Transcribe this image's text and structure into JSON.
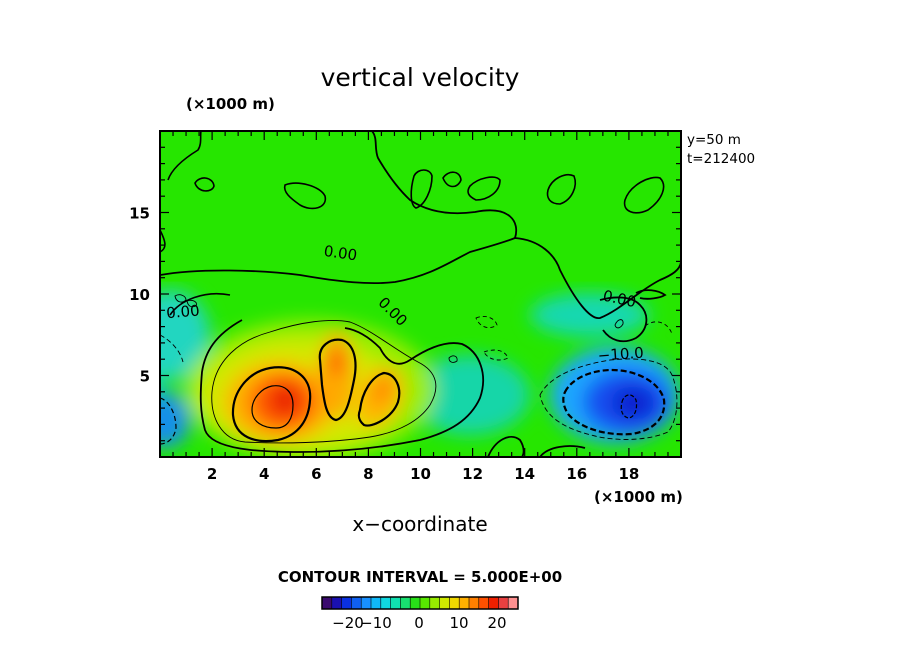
{
  "chart_data": {
    "type": "heatmap",
    "title": "vertical velocity",
    "xlabel": "x−coordinate",
    "x_unit_label": "(×1000 m)",
    "y_unit_label": "(×1000 m)",
    "info_lines": [
      "y=50  m",
      "t=212400"
    ],
    "contour_interval_label": "CONTOUR INTERVAL = 5.000E+00",
    "xlim": [
      0,
      20
    ],
    "ylim": [
      0,
      20
    ],
    "x_ticks": [
      2,
      4,
      6,
      8,
      10,
      12,
      14,
      16,
      18
    ],
    "x_tick_labels": [
      "2",
      "4",
      "6",
      "8",
      "10",
      "12",
      "14",
      "16",
      "18"
    ],
    "y_ticks": [
      5,
      10,
      15
    ],
    "y_tick_labels": [
      "5",
      "10",
      "15"
    ],
    "contour_labels": [
      {
        "text": "0.00",
        "x": 6.9,
        "y": 12.2
      },
      {
        "text": "0.00",
        "x": 0.9,
        "y": 8.6
      },
      {
        "text": "0.00",
        "x": 8.8,
        "y": 8.7
      },
      {
        "text": "0.00",
        "x": 17.6,
        "y": 9.4
      },
      {
        "text": "−10.0",
        "x": 17.7,
        "y": 6.0
      }
    ],
    "features": [
      {
        "kind": "updraft",
        "x": 4.8,
        "y": 3.6,
        "peak": 23
      },
      {
        "kind": "updraft",
        "x": 6.8,
        "y": 6.1,
        "peak": 19
      },
      {
        "kind": "updraft",
        "x": 8.3,
        "y": 4.2,
        "peak": 18
      },
      {
        "kind": "downdraft",
        "x": 18.2,
        "y": 3.3,
        "peak": -22
      },
      {
        "kind": "downdraft",
        "x": 0.1,
        "y": 2.6,
        "peak": -13
      }
    ],
    "colorbar": {
      "range": [
        -25,
        25
      ],
      "tick_values": [
        -20,
        -10,
        0,
        10,
        20
      ],
      "tick_labels": [
        "−20",
        "−10",
        "0",
        "10",
        "20"
      ]
    }
  }
}
